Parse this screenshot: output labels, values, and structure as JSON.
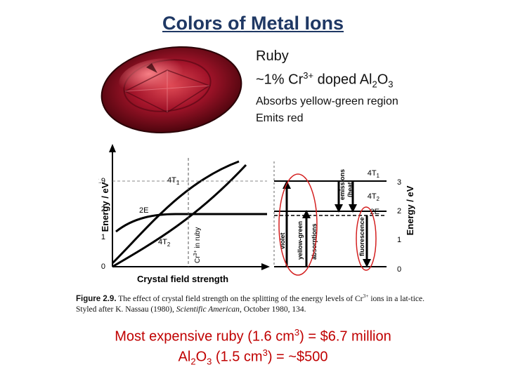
{
  "title": "Colors of Metal Ions",
  "ruby": {
    "name": "Ruby",
    "composition_prefix": "~1% Cr",
    "charge": "3+",
    "composition_mid": " doped Al",
    "sub1": "2",
    "o": "O",
    "sub2": "3"
  },
  "absorbs": "Absorbs yellow-green region",
  "emits": "Emits red",
  "figure": {
    "left_ylabel": "Energy / eV",
    "right_ylabel": "Energy / eV",
    "xlabel": "Crystal field strength",
    "ticks": [
      "0",
      "1",
      "2",
      "2.9"
    ],
    "right_ticks": [
      "0",
      "1",
      "2",
      "3"
    ],
    "lbl_4t1": "4T",
    "lbl_4t1_sub": "1",
    "lbl_2e": "2E",
    "lbl_4t2": "4T",
    "lbl_4t2_sub": "2",
    "cr_in_ruby": "Cr",
    "cr_sup": "3+",
    "cr_rest": " in ruby",
    "violet": "violet",
    "yellow_green": "yellow-green",
    "absorptions": "absorptions",
    "emissions": "emissions",
    "heat": "(heat)",
    "fluorescence": "fluorescence"
  },
  "caption": {
    "label": "Figure 2.9.",
    "text1": "The effect of crystal field strength on the splitting of the energy levels of Cr",
    "sup": "3+",
    "text2": " ions in a lat-tice. Styled after K. Nassau (1980), ",
    "journal": "Scientific American",
    "text3": ", October 1980, 134."
  },
  "bottom": {
    "line1_a": "Most expensive ruby (1.6 cm",
    "line1_sup": "3",
    "line1_b": ") = $6.7 million",
    "line2_a": "Al",
    "line2_sub1": "2",
    "line2_o": "O",
    "line2_sub2": "3",
    "line2_b": " (1.5 cm",
    "line2_sup": "3",
    "line2_c": ")  =  ~$500"
  }
}
